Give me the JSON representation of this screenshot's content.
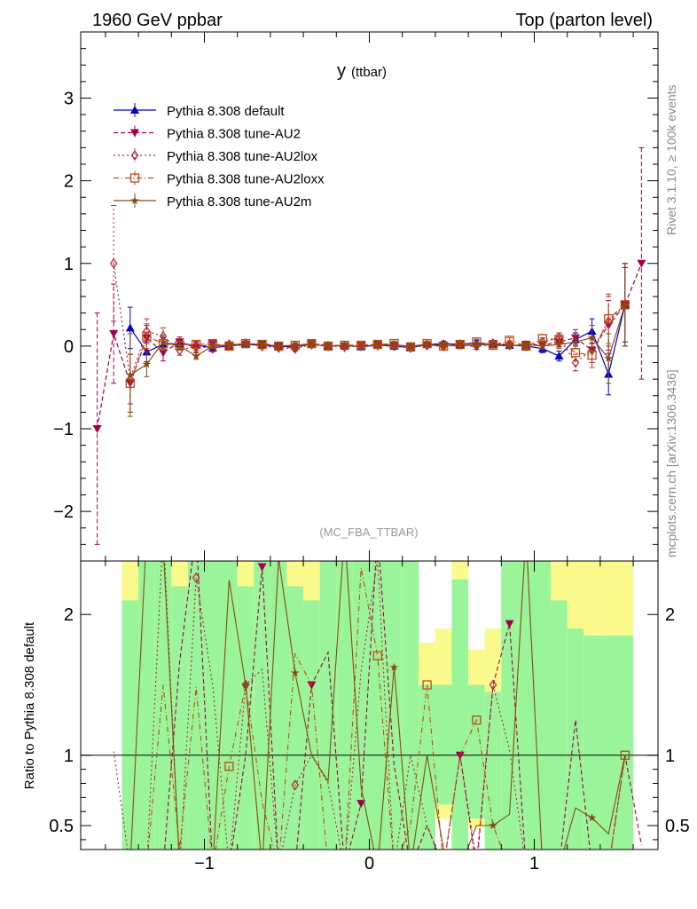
{
  "header": {
    "left_title": "1960 GeV ppbar",
    "right_title": "Top (parton level)"
  },
  "plot_title": {
    "main": "y",
    "sub": "(ttbar)"
  },
  "side_labels": {
    "rivet": "Rivet 3.1.10, ≥ 100k events",
    "mcplots": "mcplots.cern.ch [arXiv:1306.3436]"
  },
  "watermark": "(MC_FBA_TTBAR)",
  "ratio_ylabel": "Ratio to Pythia 8.308 default",
  "colors": {
    "default": "#0000cc",
    "au2": "#a0004a",
    "au2lox": "#b0203a",
    "au2loxx": "#c04a10",
    "au2m": "#8a4a10",
    "band_green": "#9af59a",
    "band_yellow": "#fafa8c"
  },
  "chart_data": {
    "type": "line",
    "xlim": [
      -1.75,
      1.75
    ],
    "ylim_main": [
      -2.6,
      3.8
    ],
    "ylim_ratio": [
      0.33,
      2.38
    ],
    "x_ticks": [
      -1,
      0,
      1
    ],
    "x_tick_labels": [
      "−1",
      "0",
      "1"
    ],
    "y_ticks_main": [
      -2,
      -1,
      0,
      1,
      2,
      3
    ],
    "y_tick_labels_main": [
      "−2",
      "−1",
      "0",
      "1",
      "2",
      "3"
    ],
    "y_ticks_ratio": [
      0.5,
      1,
      2
    ],
    "y_tick_labels_ratio": [
      "0.5",
      "1",
      "2"
    ],
    "ratio_reference": 1,
    "series": [
      {
        "name": "Pythia 8.308 default",
        "key": "default",
        "marker": "triangle-up",
        "dash": "",
        "x": [
          -1.45,
          -1.35,
          -1.25,
          -1.15,
          -1.05,
          -0.95,
          -0.85,
          -0.75,
          -0.65,
          -0.55,
          -0.45,
          -0.35,
          -0.25,
          -0.15,
          -0.05,
          0.05,
          0.15,
          0.25,
          0.35,
          0.45,
          0.55,
          0.65,
          0.75,
          0.85,
          0.95,
          1.05,
          1.15,
          1.25,
          1.35,
          1.45,
          1.55
        ],
        "y": [
          0.22,
          -0.07,
          0.02,
          0.03,
          0.01,
          -0.02,
          0.0,
          0.02,
          0.01,
          -0.01,
          0.0,
          0.02,
          0.0,
          0.01,
          -0.01,
          0.01,
          0.0,
          -0.02,
          0.02,
          0.03,
          0.02,
          0.04,
          0.02,
          0.01,
          0.0,
          -0.03,
          -0.12,
          0.08,
          0.18,
          -0.34,
          0.5
        ],
        "err": [
          0.25,
          0.12,
          0.08,
          0.05,
          0.04,
          0.03,
          0.03,
          0.03,
          0.03,
          0.03,
          0.03,
          0.03,
          0.03,
          0.03,
          0.03,
          0.03,
          0.03,
          0.03,
          0.03,
          0.03,
          0.03,
          0.03,
          0.03,
          0.03,
          0.04,
          0.05,
          0.06,
          0.08,
          0.15,
          0.25,
          0.45
        ]
      },
      {
        "name": "Pythia 8.308 tune-AU2",
        "key": "au2",
        "marker": "triangle-down",
        "dash": "5,3",
        "x": [
          -1.65,
          -1.55,
          -1.45,
          -1.35,
          -1.25,
          -1.15,
          -1.05,
          -0.95,
          -0.85,
          -0.75,
          -0.65,
          -0.55,
          -0.45,
          -0.35,
          -0.25,
          -0.15,
          -0.05,
          0.05,
          0.15,
          0.25,
          0.35,
          0.45,
          0.55,
          0.65,
          0.75,
          0.85,
          0.95,
          1.05,
          1.15,
          1.25,
          1.35,
          1.45,
          1.55,
          1.65
        ],
        "y": [
          -1.0,
          0.15,
          -0.45,
          0.1,
          -0.08,
          0.05,
          -0.02,
          0.03,
          0.0,
          0.02,
          0.03,
          0.0,
          -0.02,
          0.03,
          0.01,
          0.0,
          0.01,
          0.02,
          0.01,
          0.0,
          0.01,
          0.0,
          0.02,
          -0.01,
          0.03,
          0.0,
          0.02,
          0.01,
          0.05,
          0.1,
          -0.05,
          0.25,
          0.5,
          1.0
        ],
        "err": [
          1.4,
          0.6,
          0.35,
          0.15,
          0.1,
          0.06,
          0.05,
          0.04,
          0.03,
          0.03,
          0.03,
          0.03,
          0.03,
          0.03,
          0.03,
          0.03,
          0.03,
          0.03,
          0.03,
          0.03,
          0.03,
          0.03,
          0.03,
          0.03,
          0.03,
          0.03,
          0.04,
          0.05,
          0.06,
          0.1,
          0.15,
          0.3,
          0.5,
          1.4
        ]
      },
      {
        "name": "Pythia 8.308 tune-AU2lox",
        "key": "au2lox",
        "marker": "diamond",
        "dash": "2,3",
        "x": [
          -1.55,
          -1.45,
          -1.35,
          -1.25,
          -1.15,
          -1.05,
          -0.95,
          -0.85,
          -0.75,
          -0.65,
          -0.55,
          -0.45,
          -0.35,
          -0.25,
          -0.15,
          -0.05,
          0.05,
          0.15,
          0.25,
          0.35,
          0.45,
          0.55,
          0.65,
          0.75,
          0.85,
          0.95,
          1.05,
          1.15,
          1.25,
          1.35,
          1.45,
          1.55
        ],
        "y": [
          1.0,
          -0.4,
          0.18,
          0.12,
          -0.05,
          0.0,
          -0.03,
          0.02,
          0.03,
          0.0,
          -0.02,
          -0.03,
          0.02,
          0.0,
          -0.01,
          0.0,
          0.01,
          0.0,
          -0.02,
          0.01,
          0.0,
          0.02,
          0.01,
          0.03,
          0.02,
          0.0,
          0.05,
          0.1,
          -0.2,
          -0.05,
          0.3,
          0.5
        ],
        "err": [
          0.7,
          0.3,
          0.15,
          0.1,
          0.06,
          0.05,
          0.04,
          0.03,
          0.03,
          0.03,
          0.03,
          0.03,
          0.03,
          0.03,
          0.03,
          0.03,
          0.03,
          0.03,
          0.03,
          0.03,
          0.03,
          0.03,
          0.03,
          0.03,
          0.03,
          0.04,
          0.05,
          0.06,
          0.1,
          0.15,
          0.3,
          0.5
        ]
      },
      {
        "name": "Pythia 8.308 tune-AU2loxx",
        "key": "au2loxx",
        "marker": "square",
        "dash": "6,3,1,3",
        "x": [
          -1.45,
          -1.35,
          -1.25,
          -1.15,
          -1.05,
          -0.95,
          -0.85,
          -0.75,
          -0.65,
          -0.55,
          -0.45,
          -0.35,
          -0.25,
          -0.15,
          -0.05,
          0.05,
          0.15,
          0.25,
          0.35,
          0.45,
          0.55,
          0.65,
          0.75,
          0.85,
          0.95,
          1.05,
          1.15,
          1.25,
          1.35,
          1.45,
          1.55
        ],
        "y": [
          -0.45,
          0.12,
          0.03,
          0.01,
          0.02,
          0.03,
          0.0,
          0.03,
          0.02,
          0.0,
          0.01,
          0.03,
          0.0,
          0.01,
          0.01,
          0.02,
          0.03,
          -0.01,
          0.03,
          0.0,
          0.02,
          0.05,
          0.01,
          0.07,
          0.0,
          0.09,
          0.08,
          -0.08,
          -0.11,
          0.33,
          0.5
        ],
        "err": [
          0.35,
          0.15,
          0.08,
          0.05,
          0.04,
          0.03,
          0.03,
          0.03,
          0.03,
          0.03,
          0.03,
          0.03,
          0.03,
          0.03,
          0.03,
          0.03,
          0.03,
          0.03,
          0.03,
          0.03,
          0.03,
          0.03,
          0.03,
          0.03,
          0.03,
          0.05,
          0.06,
          0.1,
          0.15,
          0.3,
          0.5
        ]
      },
      {
        "name": "Pythia 8.308 tune-AU2m",
        "key": "au2m",
        "marker": "star",
        "dash": "",
        "x": [
          -1.45,
          -1.35,
          -1.25,
          -1.15,
          -1.05,
          -0.95,
          -0.85,
          -0.75,
          -0.65,
          -0.55,
          -0.45,
          -0.35,
          -0.25,
          -0.15,
          -0.05,
          0.05,
          0.15,
          0.25,
          0.35,
          0.45,
          0.55,
          0.65,
          0.75,
          0.85,
          0.95,
          1.05,
          1.15,
          1.25,
          1.35,
          1.45,
          1.55
        ],
        "y": [
          -0.35,
          -0.22,
          0.05,
          0.0,
          -0.12,
          0.0,
          0.01,
          0.03,
          0.02,
          0.0,
          0.01,
          0.02,
          0.0,
          0.01,
          -0.01,
          0.02,
          0.01,
          0.0,
          0.02,
          0.01,
          0.0,
          0.02,
          0.01,
          0.0,
          0.02,
          0.0,
          0.02,
          0.05,
          0.1,
          -0.15,
          0.5
        ],
        "err": [
          0.5,
          0.15,
          0.08,
          0.05,
          0.04,
          0.03,
          0.03,
          0.03,
          0.03,
          0.03,
          0.03,
          0.03,
          0.03,
          0.03,
          0.03,
          0.03,
          0.03,
          0.03,
          0.03,
          0.03,
          0.03,
          0.03,
          0.03,
          0.03,
          0.03,
          0.04,
          0.05,
          0.08,
          0.15,
          0.3,
          0.5
        ]
      }
    ],
    "ratio_band": {
      "x_edges": [
        -1.5,
        -1.4,
        -1.3,
        -1.2,
        -1.1,
        -1.0,
        -0.9,
        -0.8,
        -0.7,
        -0.6,
        -0.5,
        -0.4,
        -0.3,
        -0.2,
        -0.1,
        0.0,
        0.1,
        0.2,
        0.3,
        0.4,
        0.5,
        0.6,
        0.7,
        0.8,
        0.9,
        1.0,
        1.1,
        1.2,
        1.3,
        1.4,
        1.5,
        1.6
      ],
      "green_lo": [
        0.33,
        0.33,
        0.33,
        0.33,
        0.33,
        0.33,
        0.33,
        0.33,
        0.33,
        0.33,
        0.33,
        0.33,
        0.33,
        0.33,
        0.33,
        0.33,
        0.33,
        0.33,
        0.33,
        0.65,
        0.33,
        0.55,
        0.33,
        0.33,
        0.33,
        0.33,
        0.33,
        0.33,
        0.33,
        0.33,
        0.33
      ],
      "green_hi": [
        2.1,
        2.38,
        2.38,
        2.2,
        2.38,
        2.38,
        2.38,
        2.2,
        2.38,
        2.38,
        2.2,
        2.1,
        2.38,
        2.38,
        2.38,
        2.38,
        2.38,
        2.38,
        1.5,
        1.5,
        2.25,
        1.5,
        1.45,
        2.38,
        2.38,
        2.38,
        2.1,
        1.9,
        1.85,
        1.85,
        1.85
      ],
      "yellow_lo": [
        0.33,
        0.33,
        0.33,
        0.33,
        0.33,
        0.33,
        0.33,
        0.33,
        0.33,
        0.33,
        0.33,
        0.33,
        0.33,
        0.33,
        0.33,
        0.33,
        0.33,
        0.33,
        0.33,
        0.55,
        0.33,
        0.48,
        0.33,
        0.33,
        0.33,
        0.33,
        0.45,
        0.33,
        0.33,
        0.33,
        0.33
      ],
      "yellow_hi": [
        2.38,
        2.38,
        2.38,
        2.38,
        2.38,
        2.38,
        2.38,
        2.38,
        2.38,
        2.38,
        2.38,
        2.38,
        2.38,
        2.38,
        2.38,
        2.38,
        2.38,
        2.38,
        1.8,
        1.9,
        2.38,
        1.75,
        1.9,
        2.38,
        2.38,
        2.38,
        2.38,
        2.38,
        2.38,
        2.38,
        2.38
      ]
    }
  }
}
